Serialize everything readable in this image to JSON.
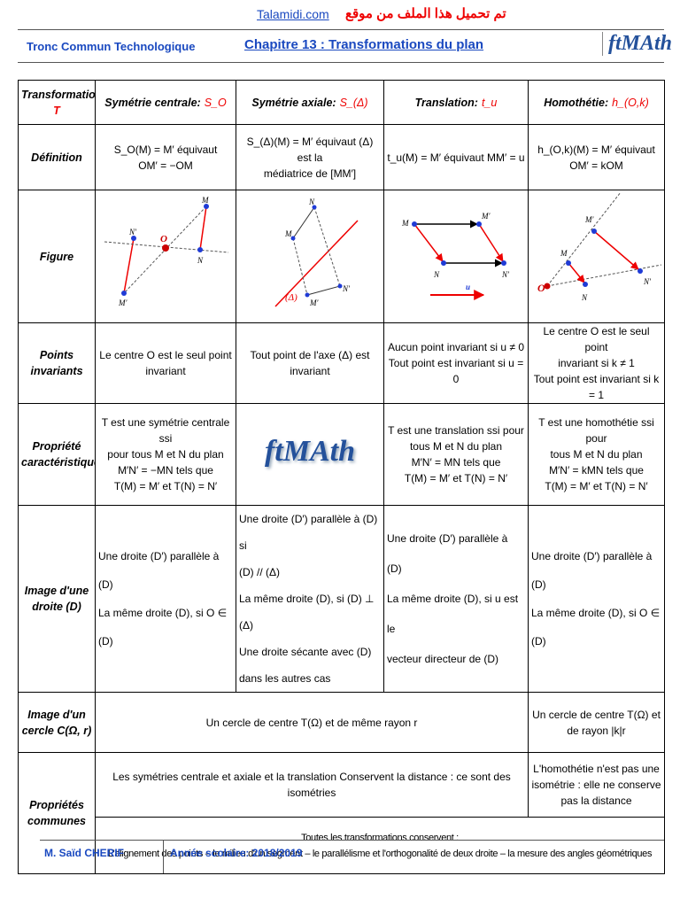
{
  "header": {
    "site": "Talamidi.com",
    "site_arabic": "تم تحميل هذا الملف من موقع",
    "level": "Tronc Commun Technologique",
    "chapter": "Chapitre 13 : Transformations du plan",
    "logo": "ftMAth"
  },
  "table": {
    "columns": [
      [
        "Transformation",
        "T"
      ],
      [
        "Symétrie centrale:",
        "S_O"
      ],
      [
        "Symétrie axiale:",
        "S_(Δ)"
      ],
      [
        "Translation:",
        "t_u"
      ],
      [
        "Homothétie:",
        "h_(O,k)"
      ]
    ],
    "rows": [
      {
        "label": [
          "Définition"
        ],
        "cells": [
          [
            "S_O(M) = M′ équivaut",
            "OM′ = −OM"
          ],
          [
            "S_(Δ)(M) = M′ équivaut (Δ) est la",
            "médiatrice de [MM′]"
          ],
          [
            "t_u(M) = M′ équivaut MM′ = u"
          ],
          [
            "h_(O,k)(M) = M′ équivaut",
            "OM′ = kOM"
          ]
        ]
      },
      {
        "label": [
          "Figure"
        ],
        "figures": [
          [
            "M",
            "N′",
            "O",
            "N",
            "M′"
          ],
          [
            "N",
            "M",
            "(Δ)",
            "M′",
            "N′"
          ],
          [
            "M",
            "M′",
            "N",
            "N′",
            "u"
          ],
          [
            "M′",
            "M",
            "O",
            "N",
            "N′"
          ]
        ]
      },
      {
        "label": [
          "Points",
          "invariants"
        ],
        "cells": [
          [
            "Le centre O est le seul point",
            "invariant"
          ],
          [
            "Tout point de l'axe (Δ) est",
            "invariant"
          ],
          [
            "Aucun point invariant si u ≠ 0",
            "Tout point est invariant si u = 0"
          ],
          [
            "Le centre O est le seul point",
            "invariant si k ≠ 1",
            "Tout point est invariant si k = 1"
          ]
        ]
      },
      {
        "label": [
          "Propriété",
          "caractéristique"
        ],
        "cells": [
          [
            "T est une symétrie centrale ssi",
            "pour tous M et N du plan",
            "M′N′ = −MN tels que",
            "T(M) = M′ et T(N) = N′"
          ],
          [
            "T est une translation ssi pour",
            "tous M et N du plan",
            "M′N′ = MN tels que",
            "T(M) = M′ et T(N) = N′"
          ],
          [
            "T est une homothétie ssi pour",
            "tous M et N du plan",
            "M′N′ = kMN tels que",
            "T(M) = M′ et T(N) = N′"
          ]
        ]
      },
      {
        "label": [
          "Image d'une",
          "droite (D)"
        ],
        "cells": [
          [
            "Une droite (D′) parallèle à (D)",
            "La même droite (D), si O ∈ (D)"
          ],
          [
            "Une droite (D′) parallèle à (D) si",
            "(D) // (Δ)",
            "La même droite (D), si (D) ⊥ (Δ)",
            "Une droite sécante avec (D)",
            "dans les autres cas"
          ],
          [
            "Une droite (D′) parallèle à (D)",
            "La même droite (D), si u est le",
            "vecteur directeur de (D)"
          ],
          [
            "Une droite (D′) parallèle à (D)",
            "La même droite (D), si O ∈ (D)"
          ]
        ]
      },
      {
        "label": [
          "Image d'un",
          "cercle C(Ω, r)"
        ],
        "cells": [
          [
            "Un cercle de centre T(Ω) et de même rayon r"
          ],
          [
            "Un cercle de centre T(Ω) et",
            "de rayon |k|r"
          ]
        ]
      },
      {
        "label": [
          "Propriétés",
          "communes"
        ],
        "cells": [
          [
            "Les symétries centrale et axiale et la translation Conservent la distance : ce sont des isométries"
          ],
          [
            "L'homothétie n'est pas une",
            "isométrie : elle ne conserve",
            "pas la distance"
          ],
          [
            "Toutes les transformations conservent :",
            "L'alignement des points – le milieu d'un segment – le parallélisme et l'orthogonalité de deux droite – la mesure des angles géométriques"
          ]
        ]
      }
    ]
  },
  "footer": {
    "author": "M. Saïd CHERIF",
    "year": "Année scolaire: 2018/2019"
  }
}
